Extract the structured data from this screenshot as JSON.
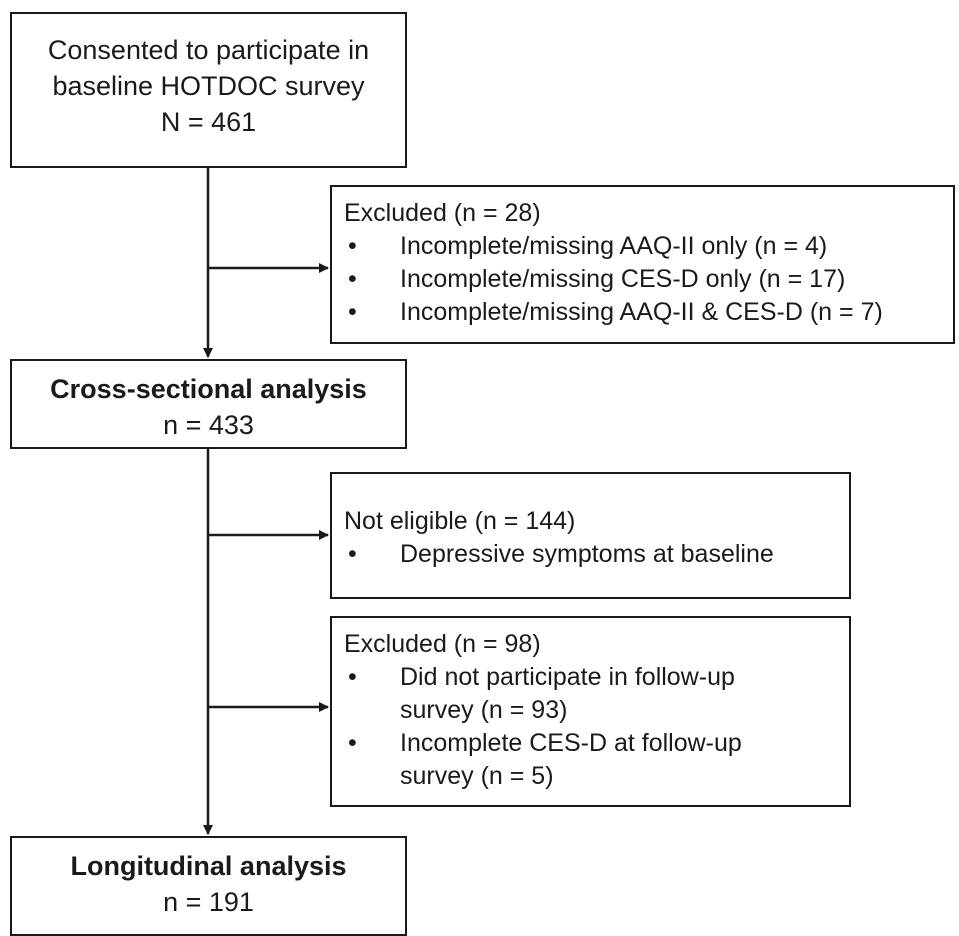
{
  "boxes": {
    "consented": {
      "line1": "Consented to participate in",
      "line2": "baseline HOTDOC survey",
      "line3": "N = 461"
    },
    "excluded1": {
      "heading": "Excluded (n = 28)",
      "bullet_glyph": "•",
      "items": [
        "Incomplete/missing AAQ-II only (n = 4)",
        "Incomplete/missing CES-D only (n = 17)",
        "Incomplete/missing AAQ-II & CES-D (n = 7)"
      ]
    },
    "cross_sectional": {
      "title": "Cross-sectional analysis",
      "count": "n = 433"
    },
    "not_eligible": {
      "heading": "Not eligible (n = 144)",
      "bullet_glyph": "•",
      "items": [
        "Depressive symptoms at baseline"
      ]
    },
    "excluded2": {
      "heading": "Excluded (n = 98)",
      "bullet_glyph": "•",
      "items": [
        {
          "line1": "Did not participate in follow-up",
          "line2": "survey (n = 93)"
        },
        {
          "line1": "Incomplete CES-D at follow-up",
          "line2": "survey (n = 5)"
        }
      ]
    },
    "longitudinal": {
      "title": "Longitudinal analysis",
      "count": "n = 191"
    }
  }
}
